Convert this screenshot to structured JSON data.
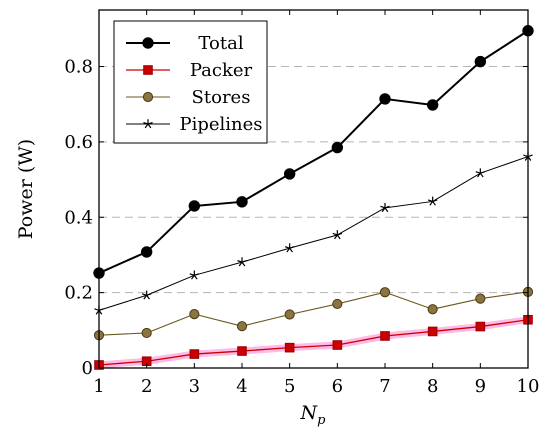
{
  "chart_data": {
    "type": "line",
    "title": "",
    "xlabel": "N",
    "xlabel_subscript": "p",
    "ylabel": "Power (W)",
    "x": [
      1,
      2,
      3,
      4,
      5,
      6,
      7,
      8,
      9,
      10
    ],
    "xlim": [
      1,
      10
    ],
    "ylim": [
      0,
      0.95
    ],
    "x_ticks": [
      "1",
      "2",
      "3",
      "4",
      "5",
      "6",
      "7",
      "8",
      "9",
      "10"
    ],
    "y_ticks": [
      {
        "value": 0,
        "label": "0"
      },
      {
        "value": 0.2,
        "label": "0.2"
      },
      {
        "value": 0.4,
        "label": "0.4"
      },
      {
        "value": 0.6,
        "label": "0.6"
      },
      {
        "value": 0.8,
        "label": "0.8"
      }
    ],
    "grid": "horizontal dashed",
    "legend_position": "top-left",
    "series": [
      {
        "name": "Total",
        "marker": "circle",
        "color": "#000000",
        "values": [
          0.252,
          0.308,
          0.43,
          0.441,
          0.515,
          0.585,
          0.714,
          0.698,
          0.813,
          0.895
        ]
      },
      {
        "name": "Packer",
        "marker": "square",
        "color": "#cc0000",
        "values": [
          0.008,
          0.018,
          0.037,
          0.045,
          0.054,
          0.061,
          0.085,
          0.097,
          0.11,
          0.128
        ]
      },
      {
        "name": "Stores",
        "marker": "circle",
        "color": "#7a6528",
        "values": [
          0.087,
          0.093,
          0.143,
          0.111,
          0.142,
          0.17,
          0.201,
          0.156,
          0.184,
          0.202
        ]
      },
      {
        "name": "Pipelines",
        "marker": "star",
        "color": "#000000",
        "values": [
          0.153,
          0.193,
          0.246,
          0.281,
          0.318,
          0.353,
          0.425,
          0.442,
          0.517,
          0.561
        ]
      }
    ]
  }
}
